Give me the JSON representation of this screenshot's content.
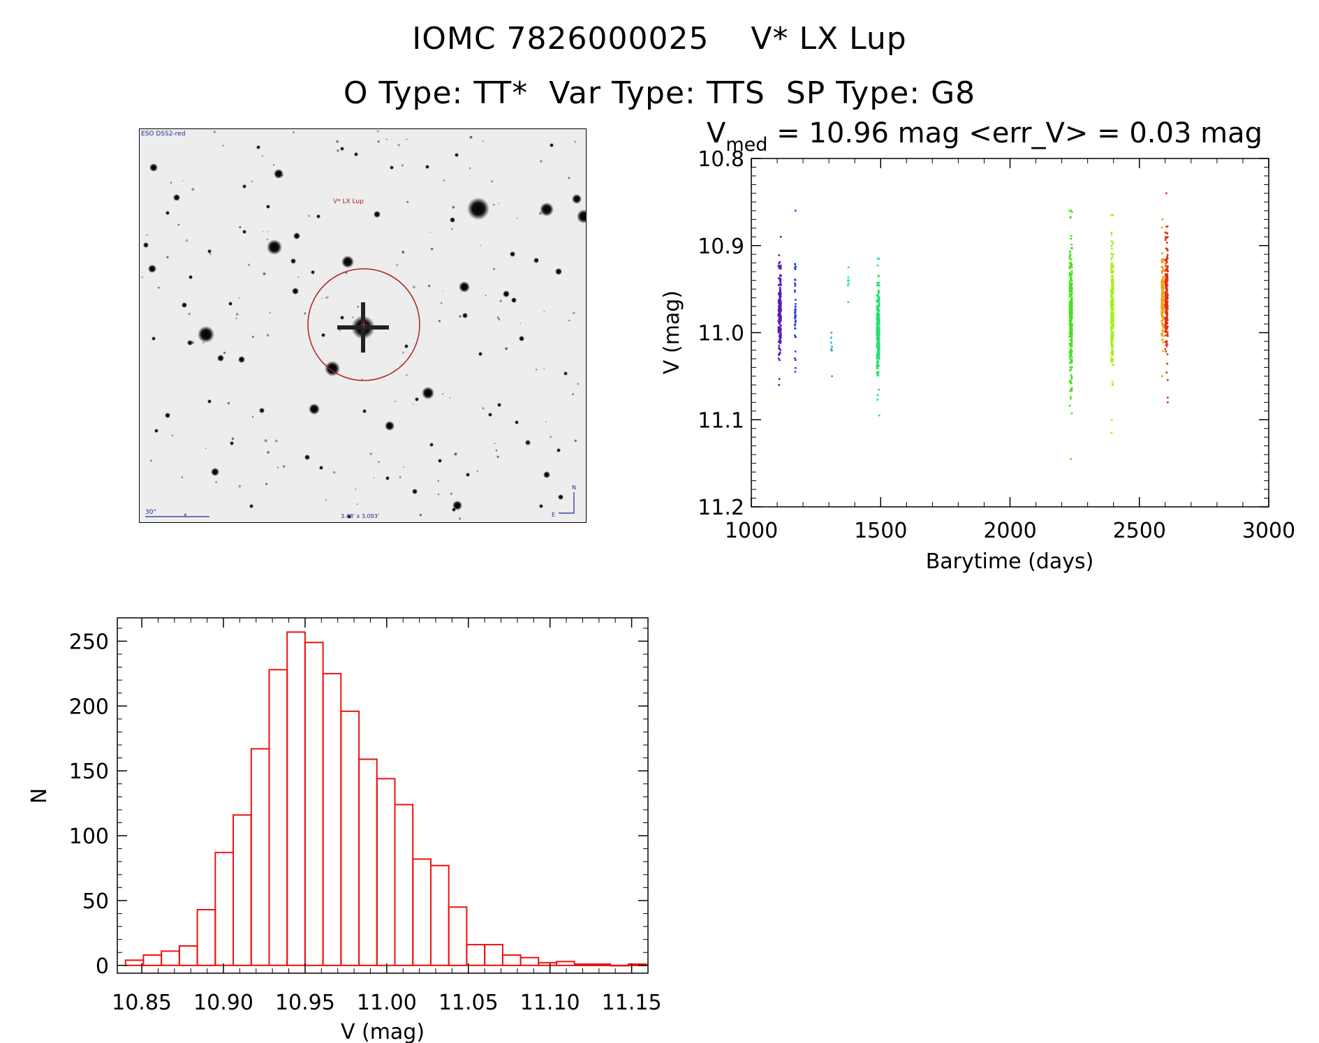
{
  "header": {
    "title_line1": "IOMC 7826000025    V* LX Lup",
    "title_line2": "O Type: TT*  Var Type: TTS  SP Type: G8"
  },
  "finder_chart": {
    "survey_label": "ESO DSS2-red",
    "target_label": "V* LX Lup",
    "scale_label": "30\"",
    "field_label": "3.48' x 3.093'",
    "north_label": "N",
    "east_label": "E"
  },
  "chart_data": [
    {
      "type": "scatter",
      "title": {
        "v_symbol": "V",
        "v_subscript": "med",
        "text": " = 10.96 mag <err_V> = 0.03 mag"
      },
      "xlabel": "Barytime (days)",
      "ylabel": "V (mag)",
      "xlim": [
        1000,
        3000
      ],
      "ylim": [
        11.2,
        10.8
      ],
      "y_inverted": true,
      "x_ticks": [
        1000,
        1500,
        2000,
        2500,
        3000
      ],
      "y_ticks": [
        10.8,
        10.9,
        11.0,
        11.1,
        11.2
      ],
      "y_tick_labels": [
        "10.8",
        "10.9",
        "11.0",
        "11.1",
        "11.2"
      ],
      "grid": false,
      "clusters": [
        {
          "x": 1110,
          "x_spread": 5,
          "y_min": 10.89,
          "y_max": 11.06,
          "y_center": 10.975,
          "n": 200,
          "color": "#5a1ab8"
        },
        {
          "x": 1170,
          "x_spread": 2,
          "y_min": 10.86,
          "y_max": 11.045,
          "y_center": 10.97,
          "n": 45,
          "color": "#2848d8"
        },
        {
          "x": 1310,
          "x_spread": 2,
          "y_min": 11.0,
          "y_max": 11.05,
          "y_center": 11.02,
          "n": 9,
          "color": "#20a8e0"
        },
        {
          "x": 1375,
          "x_spread": 2,
          "y_min": 10.925,
          "y_max": 10.965,
          "y_center": 10.945,
          "n": 7,
          "color": "#18e0c8"
        },
        {
          "x": 1490,
          "x_spread": 5,
          "y_min": 10.915,
          "y_max": 11.095,
          "y_center": 11.0,
          "n": 260,
          "color": "#20e070"
        },
        {
          "x": 2235,
          "x_spread": 5,
          "y_min": 10.86,
          "y_max": 11.145,
          "y_center": 10.98,
          "n": 300,
          "color": "#48e020"
        },
        {
          "x": 2395,
          "x_spread": 5,
          "y_min": 10.865,
          "y_max": 11.115,
          "y_center": 10.975,
          "n": 260,
          "color": "#a8f020"
        },
        {
          "x": 2590,
          "x_spread": 4,
          "y_min": 10.87,
          "y_max": 11.05,
          "y_center": 10.96,
          "n": 160,
          "color": "#f0a010"
        },
        {
          "x": 2605,
          "x_spread": 5,
          "y_min": 10.84,
          "y_max": 11.08,
          "y_center": 10.96,
          "n": 220,
          "color": "#e03010"
        }
      ]
    },
    {
      "type": "bar",
      "subtype": "histogram",
      "xlabel": "V (mag)",
      "ylabel": "N",
      "xlim": [
        10.835,
        11.16
      ],
      "ylim": [
        -6,
        268
      ],
      "x_ticks": [
        10.85,
        10.9,
        10.95,
        11.0,
        11.05,
        11.1,
        11.15
      ],
      "x_tick_labels": [
        "10.85",
        "10.90",
        "10.95",
        "11.00",
        "11.05",
        "11.10",
        "11.15"
      ],
      "y_ticks": [
        0,
        50,
        100,
        150,
        200,
        250
      ],
      "y_tick_labels": [
        "0",
        "50",
        "100",
        "150",
        "200",
        "250"
      ],
      "bin_start": 10.84,
      "bin_width": 0.011,
      "counts": [
        4,
        8,
        11,
        15,
        43,
        87,
        116,
        167,
        228,
        257,
        249,
        225,
        196,
        159,
        144,
        124,
        82,
        77,
        45,
        16,
        16,
        8,
        6,
        2,
        3,
        1,
        1,
        0,
        1
      ],
      "bar_color": "#ee1111",
      "grid": false
    }
  ]
}
